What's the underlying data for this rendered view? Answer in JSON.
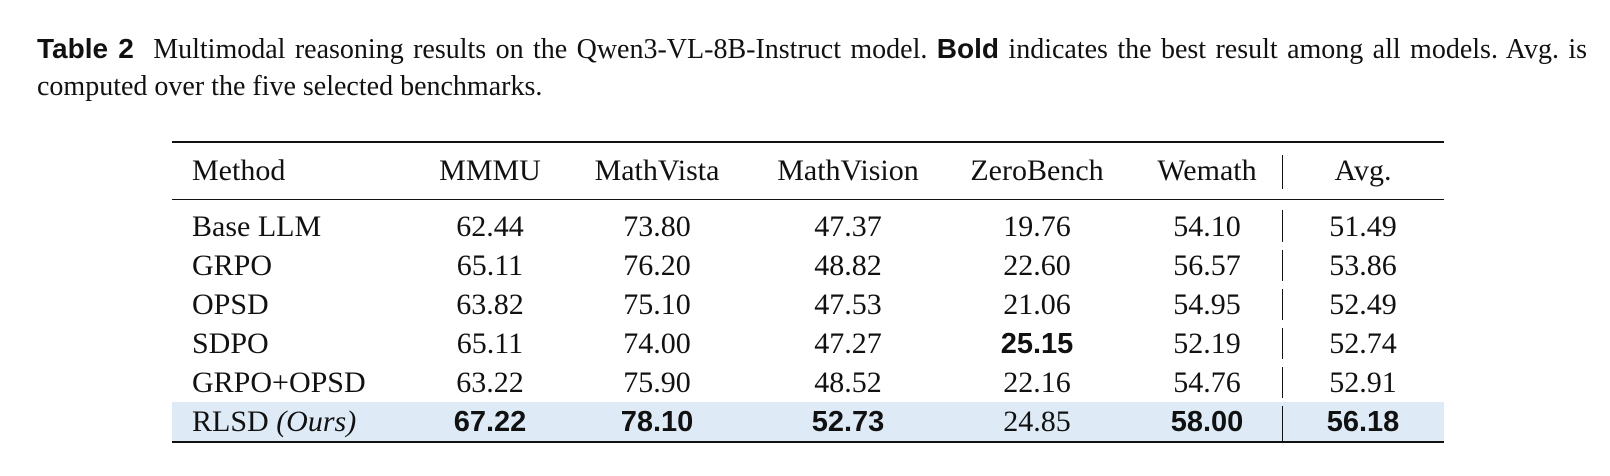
{
  "caption": {
    "label": "Table 2",
    "text_before_bold": "Multimodal reasoning results on the Qwen3-VL-8B-Instruct model.",
    "bold_word": "Bold",
    "text_after_bold": "indicates the best result among all models. Avg. is computed over the five selected benchmarks."
  },
  "table": {
    "headers": [
      "Method",
      "MMMU",
      "MathVista",
      "MathVision",
      "ZeroBench",
      "Wemath",
      "Avg."
    ],
    "rows": [
      {
        "method": "Base LLM",
        "suffix": "",
        "values": [
          "62.44",
          "73.80",
          "47.37",
          "19.76",
          "54.10",
          "51.49"
        ],
        "best": [
          false,
          false,
          false,
          false,
          false,
          false
        ],
        "highlight": false
      },
      {
        "method": "GRPO",
        "suffix": "",
        "values": [
          "65.11",
          "76.20",
          "48.82",
          "22.60",
          "56.57",
          "53.86"
        ],
        "best": [
          false,
          false,
          false,
          false,
          false,
          false
        ],
        "highlight": false
      },
      {
        "method": "OPSD",
        "suffix": "",
        "values": [
          "63.82",
          "75.10",
          "47.53",
          "21.06",
          "54.95",
          "52.49"
        ],
        "best": [
          false,
          false,
          false,
          false,
          false,
          false
        ],
        "highlight": false
      },
      {
        "method": "SDPO",
        "suffix": "",
        "values": [
          "65.11",
          "74.00",
          "47.27",
          "25.15",
          "52.19",
          "52.74"
        ],
        "best": [
          false,
          false,
          false,
          true,
          false,
          false
        ],
        "highlight": false
      },
      {
        "method": "GRPO+OPSD",
        "suffix": "",
        "values": [
          "63.22",
          "75.90",
          "48.52",
          "22.16",
          "54.76",
          "52.91"
        ],
        "best": [
          false,
          false,
          false,
          false,
          false,
          false
        ],
        "highlight": false
      },
      {
        "method": "RLSD",
        "suffix": "(Ours)",
        "values": [
          "67.22",
          "78.10",
          "52.73",
          "24.85",
          "58.00",
          "56.18"
        ],
        "best": [
          true,
          true,
          true,
          false,
          true,
          true
        ],
        "highlight": true
      }
    ]
  },
  "colors": {
    "highlight_row": "#deebf7",
    "text": "#111111"
  }
}
